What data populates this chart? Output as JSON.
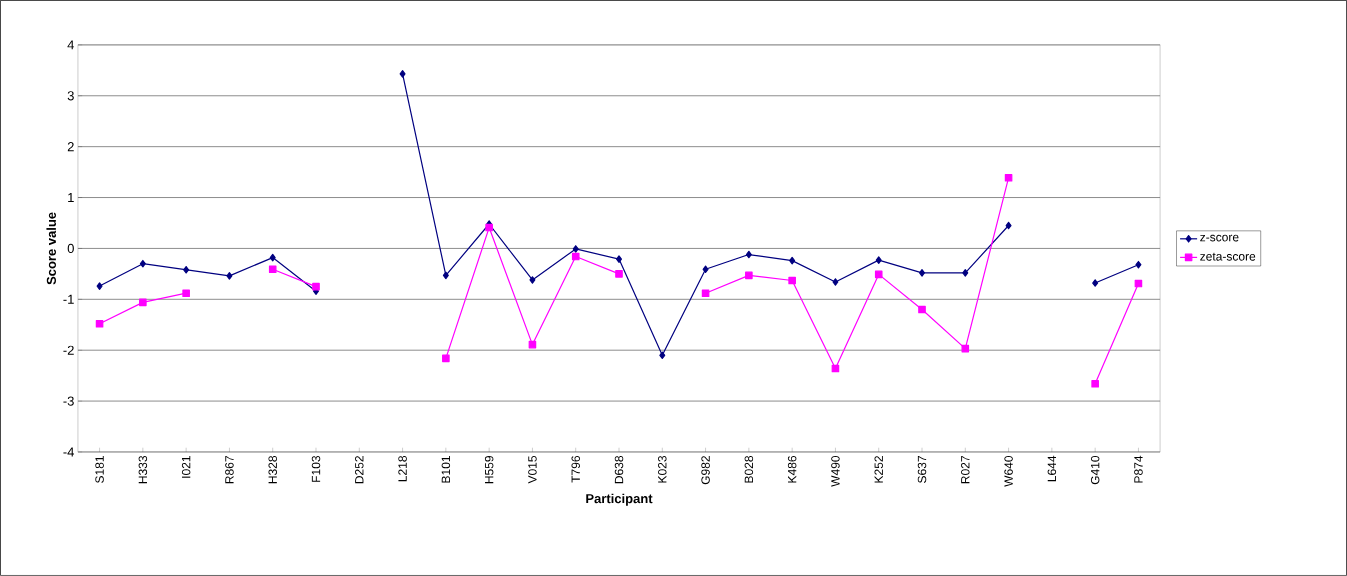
{
  "chart_data": {
    "type": "line",
    "xlabel": "Participant",
    "ylabel": "Score value",
    "categories": [
      "S181",
      "H333",
      "I021",
      "R867",
      "H328",
      "F103",
      "D252",
      "L218",
      "B101",
      "H559",
      "V015",
      "T796",
      "D638",
      "K023",
      "G982",
      "B028",
      "K486",
      "W490",
      "K252",
      "S637",
      "R027",
      "W640",
      "L644",
      "G410",
      "P874"
    ],
    "series": [
      {
        "name": "z-score",
        "color": "#000080",
        "marker": "diamond",
        "values": [
          -0.74,
          -0.3,
          -0.42,
          -0.54,
          -0.18,
          -0.84,
          null,
          3.43,
          -0.53,
          0.48,
          -0.62,
          -0.01,
          -0.21,
          -2.1,
          -0.41,
          -0.12,
          -0.24,
          -0.66,
          -0.23,
          -0.48,
          -0.48,
          0.45,
          null,
          -0.68,
          -0.32
        ]
      },
      {
        "name": "zeta-score",
        "color": "#ff00ff",
        "marker": "square",
        "values": [
          -1.48,
          -1.06,
          -0.88,
          null,
          -0.41,
          -0.75,
          null,
          null,
          -2.16,
          0.41,
          -1.89,
          -0.16,
          -0.5,
          null,
          -0.88,
          -0.53,
          -0.63,
          -2.36,
          -0.51,
          -1.2,
          -1.97,
          1.39,
          null,
          -2.66,
          -0.69
        ]
      }
    ],
    "ylim": [
      -4,
      4
    ],
    "yticks": [
      -4,
      -3,
      -2,
      -1,
      0,
      1,
      2,
      3,
      4
    ],
    "grid": "y",
    "legend": "right"
  }
}
